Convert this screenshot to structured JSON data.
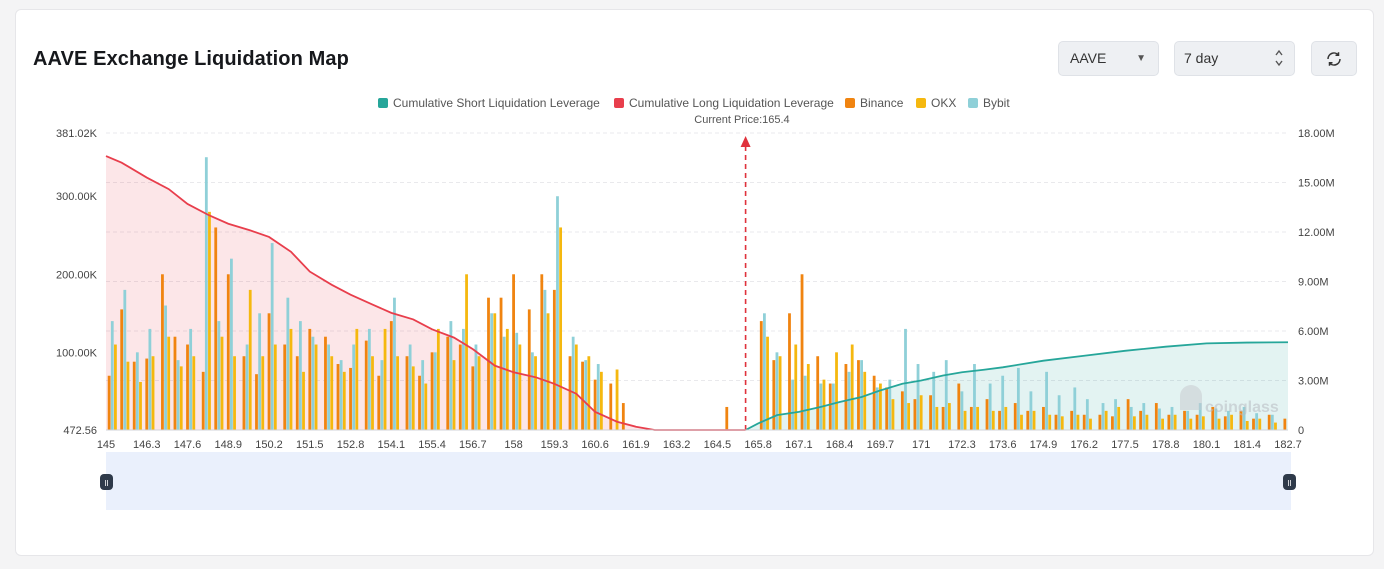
{
  "header": {
    "title": "AAVE Exchange Liquidation Map",
    "symbol_select": "AAVE",
    "range_select": "7 day"
  },
  "icons": {
    "dropdown": "chevron-down-icon",
    "stepper": "up-down-icon",
    "refresh": "refresh-icon",
    "watermark": "coinglass-logo"
  },
  "watermark": "coinglass",
  "colors": {
    "short": "#26a69a",
    "long": "#e83e4c",
    "binance": "#f08410",
    "okx": "#f5b80f",
    "bybit": "#8fd0d8",
    "price_line": "#e0323c"
  },
  "chart_data": {
    "type": "bar",
    "legend": [
      "Cumulative Short Liquidation Leverage",
      "Cumulative Long Liquidation Leverage",
      "Binance",
      "OKX",
      "Bybit"
    ],
    "legend_position": "top-center",
    "current_price_label": "Current Price:165.4",
    "current_price": 165.4,
    "x_ticks": [
      "145",
      "146.3",
      "147.6",
      "148.9",
      "150.2",
      "151.5",
      "152.8",
      "154.1",
      "155.4",
      "156.7",
      "158",
      "159.3",
      "160.6",
      "161.9",
      "163.2",
      "164.5",
      "165.8",
      "167.1",
      "168.4",
      "169.7",
      "171",
      "172.3",
      "173.6",
      "174.9",
      "176.2",
      "177.5",
      "178.8",
      "180.1",
      "181.4",
      "182.7"
    ],
    "xlim": [
      145,
      182.7
    ],
    "y_left_ticks": [
      "381.02K",
      "300.00K",
      "200.00K",
      "100.00K",
      "472.56"
    ],
    "y_left_range": [
      472.56,
      381020
    ],
    "y_right_ticks": [
      "18.00M",
      "15.00M",
      "12.00M",
      "9.00M",
      "6.00M",
      "3.00M",
      "0"
    ],
    "y_right_range": [
      0,
      18000000
    ],
    "grid": true,
    "series": [
      {
        "name": "Cumulative Long Liquidation Leverage",
        "x": [
          145,
          145.5,
          146.3,
          147,
          147.6,
          148.3,
          148.9,
          149.6,
          150.2,
          150.9,
          151.5,
          152.2,
          152.8,
          153.5,
          154.1,
          154.8,
          155.4,
          156.1,
          156.7,
          157.4,
          158,
          158.7,
          159.3,
          160,
          160.6,
          161.3,
          161.9,
          162.5,
          165.4
        ],
        "values": [
          16600000,
          16200000,
          15300000,
          14600000,
          13700000,
          13000000,
          12500000,
          12100000,
          11700000,
          10800000,
          9600000,
          8800000,
          8200000,
          7600000,
          7100000,
          6700000,
          6100000,
          5600000,
          4900000,
          3900000,
          3500000,
          3200000,
          2800000,
          2200000,
          1100000,
          500000,
          200000,
          0,
          0
        ]
      },
      {
        "name": "Cumulative Short Liquidation Leverage",
        "x": [
          165.4,
          165.8,
          166.4,
          167.1,
          167.8,
          168.4,
          169.1,
          169.7,
          170.4,
          171,
          171.7,
          172.3,
          173,
          173.6,
          174.9,
          176.2,
          177.5,
          178.8,
          180.1,
          181.4,
          182.7
        ],
        "values": [
          0,
          400000,
          900000,
          1100000,
          1400000,
          1700000,
          2000000,
          2400000,
          2800000,
          3000000,
          3300000,
          3500000,
          3650000,
          3800000,
          4200000,
          4500000,
          4800000,
          5050000,
          5250000,
          5300000,
          5320000
        ]
      },
      {
        "name": "Binance",
        "x": [
          145.1,
          145.5,
          145.9,
          146.3,
          146.8,
          147.2,
          147.6,
          148.1,
          148.5,
          148.9,
          149.4,
          149.8,
          150.2,
          150.7,
          151.1,
          151.5,
          152,
          152.4,
          152.8,
          153.3,
          153.7,
          154.1,
          154.6,
          155,
          155.4,
          155.9,
          156.3,
          156.7,
          157.2,
          157.6,
          158,
          158.5,
          158.9,
          159.3,
          159.8,
          160.2,
          160.6,
          161.1,
          161.5,
          164.8,
          165.9,
          166.3,
          166.8,
          167.2,
          167.7,
          168.1,
          168.6,
          169,
          169.5,
          169.9,
          170.4,
          170.8,
          171.3,
          171.7,
          172.2,
          172.6,
          173.1,
          173.5,
          174,
          174.4,
          174.9,
          175.3,
          175.8,
          176.2,
          176.7,
          177.1,
          177.6,
          178,
          178.5,
          178.9,
          179.4,
          179.8,
          180.3,
          180.7,
          181.2,
          181.6,
          182.1,
          182.6
        ],
        "values": [
          70000,
          155000,
          88000,
          92000,
          200000,
          120000,
          110000,
          75000,
          260000,
          200000,
          95000,
          72000,
          150000,
          110000,
          95000,
          130000,
          120000,
          85000,
          80000,
          115000,
          70000,
          140000,
          95000,
          70000,
          100000,
          120000,
          110000,
          82000,
          170000,
          170000,
          200000,
          155000,
          200000,
          180000,
          95000,
          88000,
          65000,
          60000,
          35000,
          30000,
          140000,
          90000,
          150000,
          200000,
          95000,
          60000,
          85000,
          90000,
          70000,
          55000,
          50000,
          40000,
          45000,
          30000,
          60000,
          30000,
          40000,
          25000,
          35000,
          25000,
          30000,
          20000,
          25000,
          20000,
          20000,
          18000,
          40000,
          25000,
          35000,
          20000,
          25000,
          20000,
          30000,
          18000,
          25000,
          15000,
          20000,
          15000
        ]
      },
      {
        "name": "OKX",
        "x": [
          145.3,
          145.7,
          146.1,
          146.5,
          147,
          147.4,
          147.8,
          148.3,
          148.7,
          149.1,
          149.6,
          150,
          150.4,
          150.9,
          151.3,
          151.7,
          152.2,
          152.6,
          153,
          153.5,
          153.9,
          154.3,
          154.8,
          155.2,
          155.6,
          156.1,
          156.5,
          156.9,
          157.4,
          157.8,
          158.2,
          158.7,
          159.1,
          159.5,
          160,
          160.4,
          160.8,
          161.3,
          166.1,
          166.5,
          167,
          167.4,
          167.9,
          168.3,
          168.8,
          169.2,
          169.7,
          170.1,
          170.6,
          171,
          171.5,
          171.9,
          172.4,
          172.8,
          173.3,
          173.7,
          174.2,
          174.6,
          175.1,
          175.5,
          176,
          176.4,
          176.9,
          177.3,
          177.8,
          178.2,
          178.7,
          179.1,
          179.6,
          180,
          180.5,
          180.9,
          181.4,
          181.8,
          182.3
        ],
        "values": [
          110000,
          88000,
          62000,
          95000,
          120000,
          82000,
          95000,
          280000,
          120000,
          95000,
          180000,
          95000,
          110000,
          130000,
          75000,
          110000,
          95000,
          75000,
          130000,
          95000,
          130000,
          95000,
          82000,
          60000,
          130000,
          90000,
          200000,
          95000,
          150000,
          130000,
          110000,
          95000,
          150000,
          260000,
          110000,
          95000,
          75000,
          78000,
          120000,
          95000,
          110000,
          85000,
          65000,
          100000,
          110000,
          75000,
          60000,
          40000,
          35000,
          45000,
          30000,
          35000,
          25000,
          30000,
          25000,
          30000,
          20000,
          25000,
          20000,
          18000,
          20000,
          15000,
          25000,
          30000,
          18000,
          20000,
          15000,
          20000,
          15000,
          18000,
          15000,
          20000,
          12000,
          15000,
          10000
        ]
      },
      {
        "name": "Bybit",
        "x": [
          145.2,
          145.6,
          146,
          146.4,
          146.9,
          147.3,
          147.7,
          148.2,
          148.6,
          149,
          149.5,
          149.9,
          150.3,
          150.8,
          151.2,
          151.6,
          152.1,
          152.5,
          152.9,
          153.4,
          153.8,
          154.2,
          154.7,
          155.1,
          155.5,
          156,
          156.4,
          156.8,
          157.3,
          157.7,
          158.1,
          158.6,
          159,
          159.4,
          159.9,
          160.3,
          160.7,
          166,
          166.4,
          166.9,
          167.3,
          167.8,
          168.2,
          168.7,
          169.1,
          169.6,
          170,
          170.5,
          170.9,
          171.4,
          171.8,
          172.3,
          172.7,
          173.2,
          173.6,
          174.1,
          174.5,
          175,
          175.4,
          175.9,
          176.3,
          176.8,
          177.2,
          177.7,
          178.1,
          178.6,
          179,
          179.5,
          179.9,
          180.4,
          180.8,
          181.3,
          181.7,
          182.2
        ],
        "values": [
          140000,
          180000,
          100000,
          130000,
          160000,
          90000,
          130000,
          350000,
          140000,
          220000,
          110000,
          150000,
          240000,
          170000,
          140000,
          120000,
          110000,
          90000,
          110000,
          130000,
          90000,
          170000,
          110000,
          90000,
          100000,
          140000,
          130000,
          110000,
          150000,
          120000,
          125000,
          100000,
          180000,
          300000,
          120000,
          90000,
          85000,
          150000,
          100000,
          65000,
          70000,
          60000,
          60000,
          75000,
          90000,
          55000,
          65000,
          130000,
          85000,
          75000,
          90000,
          50000,
          85000,
          60000,
          70000,
          80000,
          50000,
          75000,
          45000,
          55000,
          40000,
          35000,
          40000,
          30000,
          35000,
          28000,
          30000,
          25000,
          35000,
          28000,
          25000,
          30000,
          22000,
          20000
        ]
      }
    ]
  }
}
